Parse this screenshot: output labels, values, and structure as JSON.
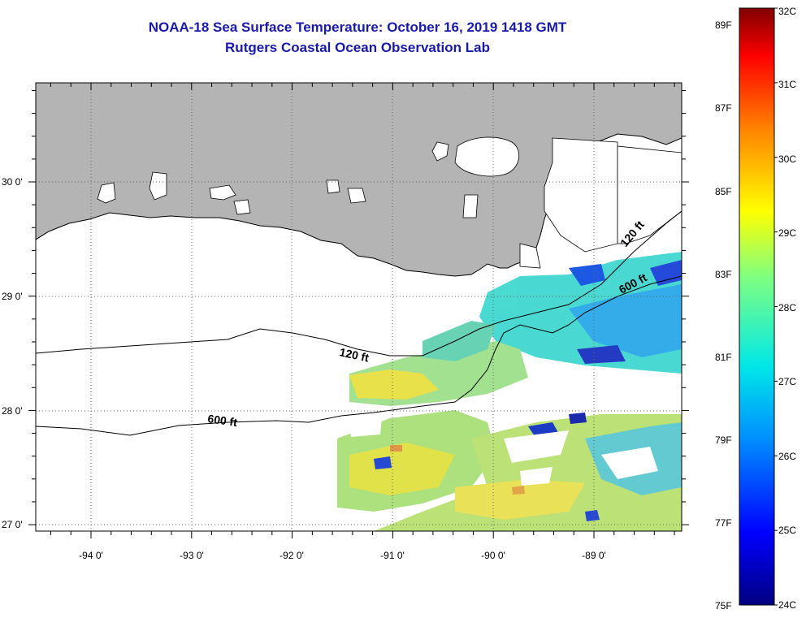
{
  "header": {
    "title": "NOAA-18 Sea Surface Temperature:  October 16, 2019 1418 GMT",
    "subtitle": "Rutgers Coastal Ocean Observation Lab"
  },
  "map": {
    "lon_ticks": [
      "-94 0'",
      "-93 0'",
      "-92 0'",
      "-91 0'",
      "-90 0'",
      "-89 0'"
    ],
    "lat_ticks": [
      "30 0'",
      "29 0'",
      "28 0'",
      "27 0'"
    ],
    "contours": [
      {
        "label": "120 ft"
      },
      {
        "label": "600 ft"
      },
      {
        "label": "120 ft"
      },
      {
        "label": "600 ft"
      }
    ],
    "colors": {
      "land": "#b4b4b4",
      "ocean_nodata": "#ffffff",
      "grid": "#666666"
    }
  },
  "colorbar": {
    "fahrenheit": [
      "89F",
      "87F",
      "85F",
      "83F",
      "81F",
      "79F",
      "77F",
      "75F"
    ],
    "celsius": [
      "32C",
      "31C",
      "30C",
      "29C",
      "28C",
      "27C",
      "26C",
      "25C",
      "24C"
    ],
    "range_celsius": [
      24,
      32
    ]
  }
}
